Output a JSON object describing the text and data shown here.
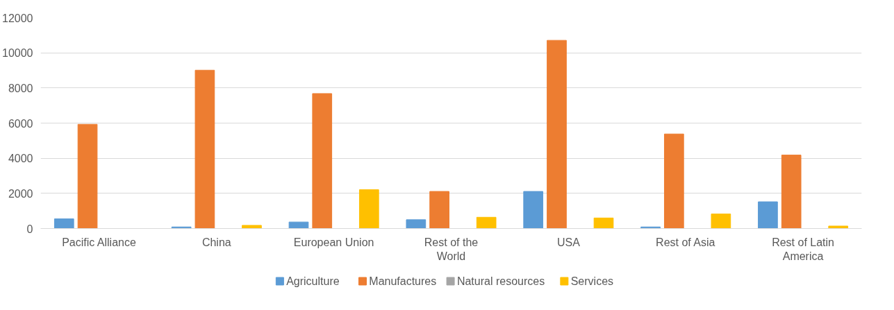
{
  "chart_data": {
    "type": "bar",
    "categories": [
      "Pacific Alliance",
      "China",
      "European Union",
      "Rest of the World",
      "USA",
      "Rest of Asia",
      "Rest of Latin America"
    ],
    "series": [
      {
        "name": "Agriculture",
        "color": "#5b9bd5",
        "values": [
          550,
          90,
          370,
          500,
          2110,
          90,
          1520
        ]
      },
      {
        "name": "Manufactures",
        "color": "#ed7d31",
        "values": [
          5930,
          9010,
          7680,
          2110,
          10710,
          5380,
          4180
        ]
      },
      {
        "name": "Natural resources",
        "color": "#a5a5a5",
        "values": [
          0,
          0,
          0,
          0,
          0,
          0,
          0
        ]
      },
      {
        "name": "Services",
        "color": "#ffc000",
        "values": [
          0,
          180,
          2210,
          640,
          600,
          830,
          140
        ]
      }
    ],
    "ylim": [
      0,
      12000
    ],
    "yticks": [
      0,
      2000,
      4000,
      6000,
      8000,
      10000,
      12000
    ],
    "grid": "y",
    "legend": "bottom"
  }
}
